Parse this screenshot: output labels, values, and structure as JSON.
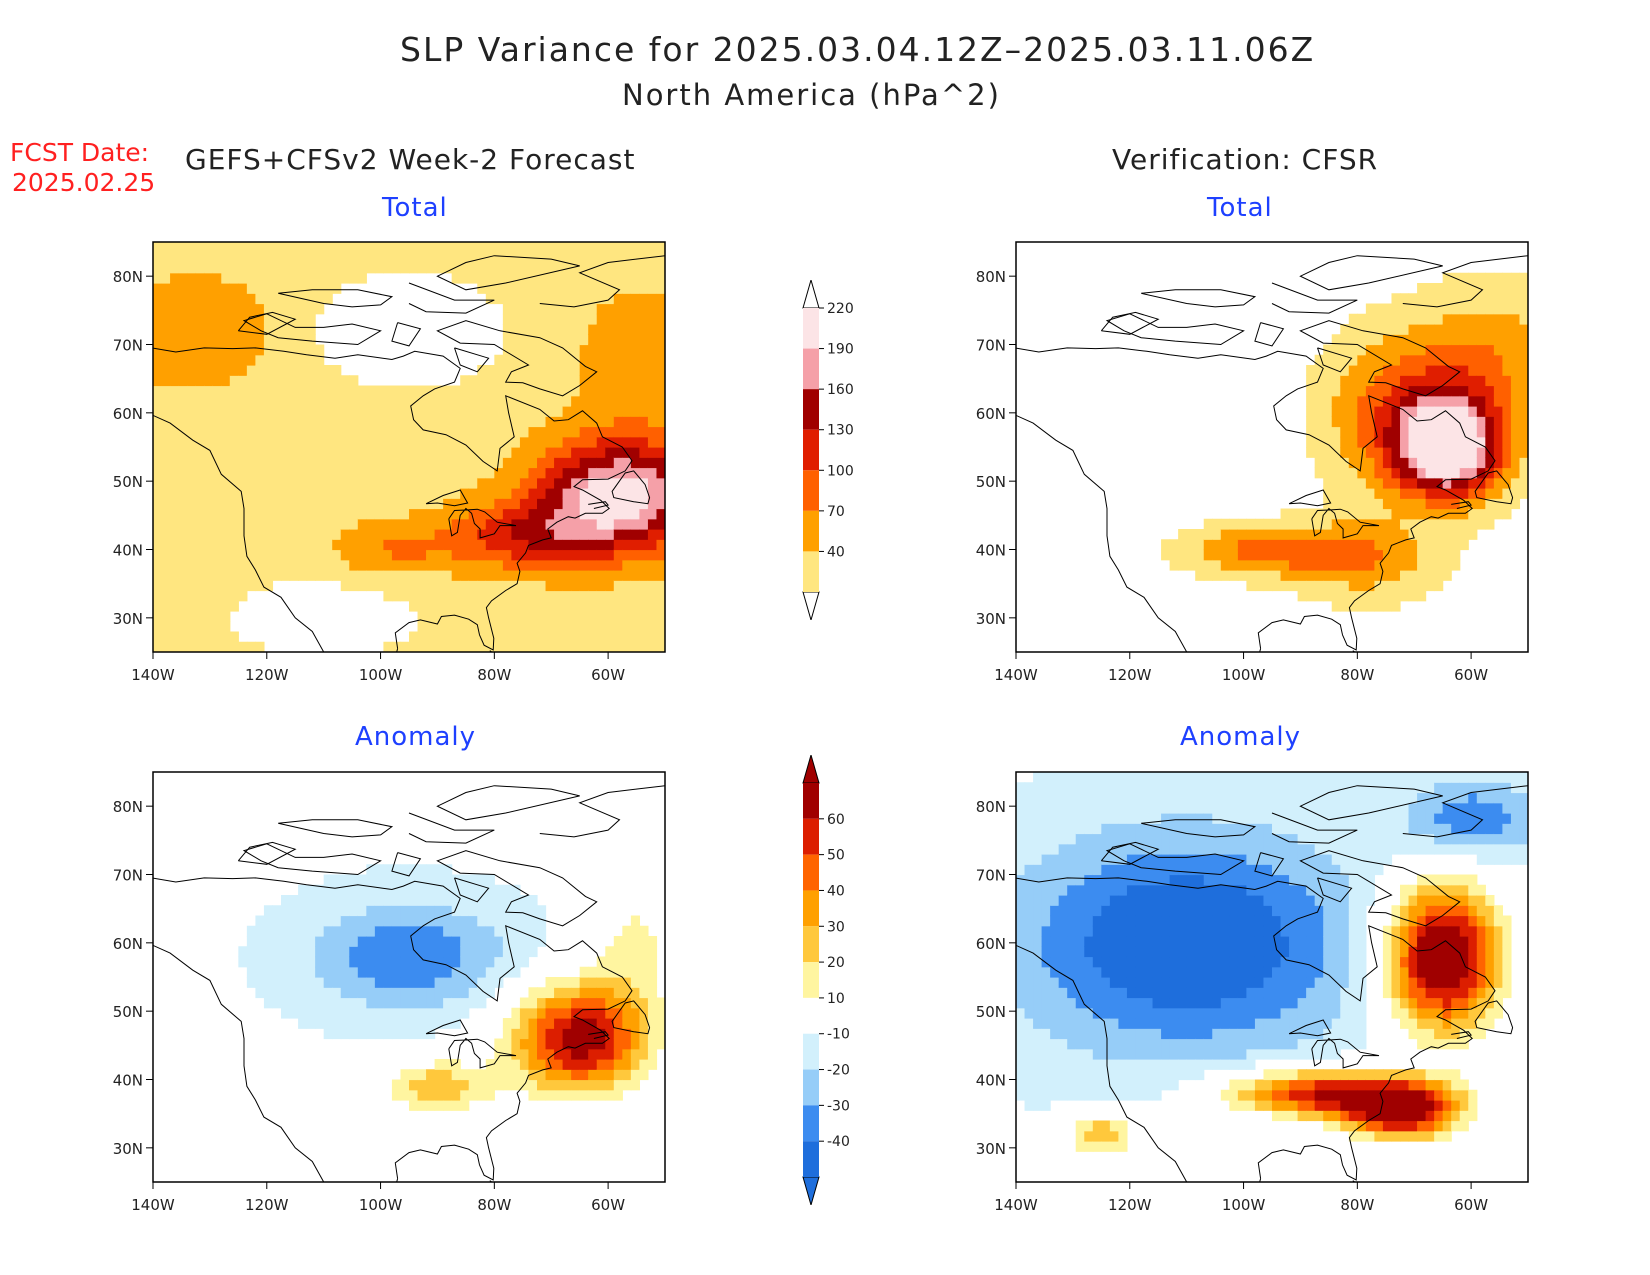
{
  "header": {
    "title": "SLP Variance for 2025.03.04.12Z–2025.03.11.06Z",
    "subtitle": "North America (hPa^2)",
    "fcst_label": "FCST Date:",
    "fcst_date": "2025.02.25",
    "left_heading": "GEFS+CFSv2 Week-2 Forecast",
    "right_heading": "Verification: CFSR"
  },
  "panels": [
    {
      "id": "forecast-total",
      "title": "Total",
      "field": "total",
      "source": "forecast"
    },
    {
      "id": "verification-total",
      "title": "Total",
      "field": "total",
      "source": "verification"
    },
    {
      "id": "forecast-anomaly",
      "title": "Anomaly",
      "field": "anomaly",
      "source": "forecast"
    },
    {
      "id": "verification-anomaly",
      "title": "Anomaly",
      "field": "anomaly",
      "source": "verification"
    }
  ],
  "axes": {
    "lon_ticks": [
      "140W",
      "120W",
      "100W",
      "80W",
      "60W"
    ],
    "lon_values": [
      -140,
      -120,
      -100,
      -80,
      -60
    ],
    "lat_ticks": [
      "30N",
      "40N",
      "50N",
      "60N",
      "70N",
      "80N"
    ],
    "lat_values": [
      30,
      40,
      50,
      60,
      70,
      80
    ],
    "lon_range": [
      -140,
      -50
    ],
    "lat_range": [
      25,
      85
    ]
  },
  "legend_total": {
    "levels": [
      "40",
      "70",
      "100",
      "130",
      "160",
      "190",
      "220"
    ],
    "colors": [
      "#ffe680",
      "#ffa000",
      "#ff6000",
      "#e01e00",
      "#a00000",
      "#f5a0a8",
      "#fce4e6"
    ]
  },
  "legend_anomaly": {
    "levels": [
      "-40",
      "-30",
      "-20",
      "-10",
      "10",
      "20",
      "30",
      "40",
      "50",
      "60"
    ],
    "colors": [
      "#1e6edc",
      "#3c8cf0",
      "#96cdf8",
      "#d2f0fc",
      "#ffffff",
      "#fff5a0",
      "#ffc83c",
      "#ffa000",
      "#ff6400",
      "#dc1e00",
      "#a00000"
    ]
  }
}
